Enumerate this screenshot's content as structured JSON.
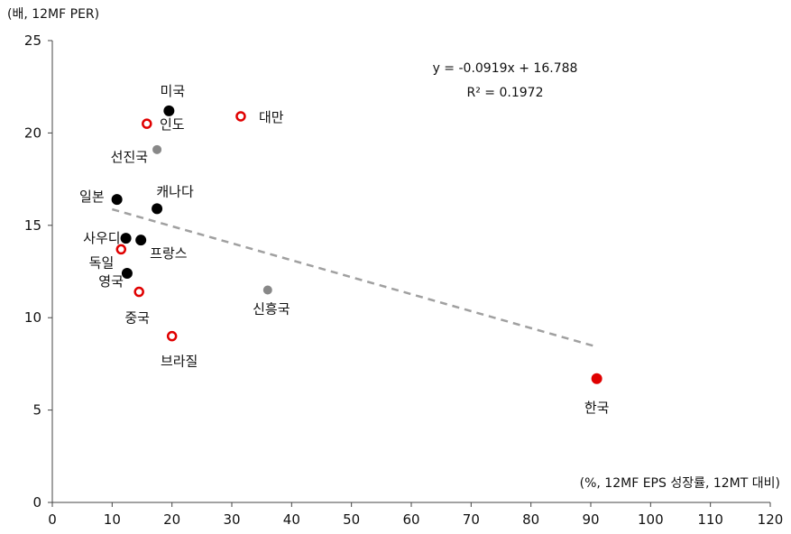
{
  "chart_data": {
    "type": "scatter",
    "ylabel": "(배, 12MF PER)",
    "xlabel": "(%, 12MF EPS 성장률, 12MT 대비)",
    "xlim": [
      0,
      120
    ],
    "ylim": [
      0,
      25
    ],
    "xticks": [
      0,
      10,
      20,
      30,
      40,
      50,
      60,
      70,
      80,
      90,
      100,
      110,
      120
    ],
    "yticks": [
      0,
      5,
      10,
      15,
      20,
      25
    ],
    "grid": false,
    "colors": {
      "developed": "#000000",
      "emerging": "#e00000",
      "aggregate": "#888888",
      "korea": "#e00000",
      "trend": "#a0a0a0"
    },
    "points": [
      {
        "name": "미국",
        "x": 19.5,
        "y": 21.2,
        "group": "developed"
      },
      {
        "name": "대만",
        "x": 31.5,
        "y": 20.9,
        "group": "emerging"
      },
      {
        "name": "인도",
        "x": 15.8,
        "y": 20.5,
        "group": "emerging"
      },
      {
        "name": "선진국",
        "x": 17.5,
        "y": 19.1,
        "group": "aggregate"
      },
      {
        "name": "일본",
        "x": 10.8,
        "y": 16.4,
        "group": "developed"
      },
      {
        "name": "캐나다",
        "x": 17.5,
        "y": 15.9,
        "group": "developed"
      },
      {
        "name": "사우디",
        "x": 12.3,
        "y": 14.3,
        "group": "developed"
      },
      {
        "name": "프랑스",
        "x": 14.8,
        "y": 14.2,
        "group": "developed"
      },
      {
        "name": "독일",
        "x": 11.5,
        "y": 13.7,
        "group": "emerging"
      },
      {
        "name": "영국",
        "x": 12.5,
        "y": 12.4,
        "group": "developed"
      },
      {
        "name": "중국",
        "x": 14.5,
        "y": 11.4,
        "group": "emerging"
      },
      {
        "name": "신흥국",
        "x": 36.0,
        "y": 11.5,
        "group": "aggregate"
      },
      {
        "name": "브라질",
        "x": 20.0,
        "y": 9.0,
        "group": "emerging"
      },
      {
        "name": "한국",
        "x": 91.0,
        "y": 6.7,
        "group": "korea"
      }
    ],
    "trendline": {
      "slope": -0.0919,
      "intercept": 16.788,
      "x_range": [
        10,
        91
      ]
    },
    "equation": "y = -0.0919x + 16.788",
    "r_squared": "R² = 0.1972"
  }
}
